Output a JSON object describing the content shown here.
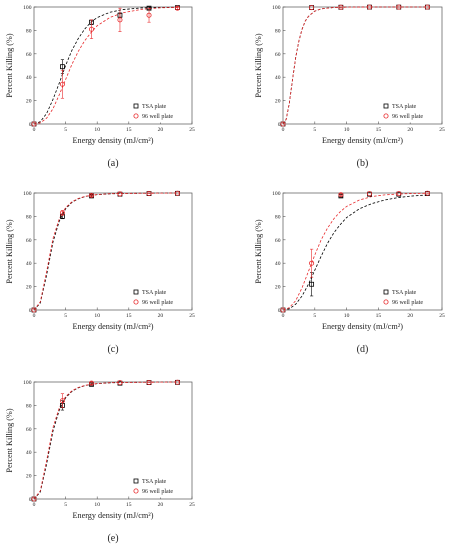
{
  "chart_data": [
    {
      "type": "scatter",
      "panel_label": "(a)",
      "xlabel": "Energy density (mJ/cm²)",
      "ylabel": "Percent Killing (%)",
      "xlim": [
        0,
        25
      ],
      "ylim": [
        0,
        100
      ],
      "xticks": [
        0,
        5,
        10,
        15,
        20,
        25
      ],
      "yticks": [
        0,
        20,
        40,
        60,
        80,
        100
      ],
      "grid": false,
      "legend_position": "bottom-right",
      "series": [
        {
          "name": "TSA plate",
          "marker": "square",
          "color": "#000000",
          "x": [
            0,
            4.5,
            9.1,
            13.6,
            18.2,
            22.7
          ],
          "y": [
            0,
            49,
            87,
            93,
            99,
            99.5
          ],
          "err": [
            0,
            6,
            2,
            2,
            1,
            0
          ]
        },
        {
          "name": "96 well plate",
          "marker": "circle",
          "color": "#e8292b",
          "x": [
            0,
            4.5,
            9.1,
            13.6,
            18.2,
            22.7
          ],
          "y": [
            0,
            34,
            81,
            89,
            93,
            99
          ],
          "err": [
            0,
            12,
            8,
            10,
            6,
            1
          ]
        }
      ],
      "fits": [
        {
          "series": "TSA plate",
          "style": "dashed",
          "color": "#000000",
          "x": [
            0,
            1,
            2,
            3,
            4,
            5,
            6,
            7,
            8,
            9,
            10,
            12,
            14,
            17,
            20,
            23
          ],
          "y": [
            0,
            2,
            9,
            21,
            35,
            50,
            63,
            73,
            81,
            87,
            91,
            95.5,
            97.8,
            99.2,
            99.6,
            99.8
          ]
        },
        {
          "series": "96 well plate",
          "style": "dashed",
          "color": "#e8292b",
          "x": [
            0,
            1,
            2,
            3,
            4,
            5,
            6,
            7,
            8,
            9,
            10,
            12,
            14,
            17,
            20,
            23
          ],
          "y": [
            0,
            1,
            5,
            13,
            25,
            38,
            51,
            62,
            71,
            78,
            84,
            91,
            95,
            98,
            99.3,
            99.7
          ]
        }
      ]
    },
    {
      "type": "scatter",
      "panel_label": "(b)",
      "xlabel": "Energy density (mJ/cm²)",
      "ylabel": "Percent Killing (%)",
      "xlim": [
        0,
        25
      ],
      "ylim": [
        0,
        100
      ],
      "xticks": [
        0,
        5,
        10,
        15,
        20,
        25
      ],
      "yticks": [
        0,
        20,
        40,
        60,
        80,
        100
      ],
      "grid": false,
      "legend_position": "bottom-right",
      "series": [
        {
          "name": "TSA plate",
          "marker": "square",
          "color": "#000000",
          "x": [
            0,
            4.5,
            9.1,
            13.6,
            18.2,
            22.7
          ],
          "y": [
            0,
            99.5,
            99.8,
            99.9,
            99.9,
            99.9
          ],
          "err": [
            0,
            0,
            0,
            0,
            0,
            0
          ]
        },
        {
          "name": "96 well plate",
          "marker": "circle",
          "color": "#e8292b",
          "x": [
            0,
            4.5,
            9.1,
            13.6,
            18.2,
            22.7
          ],
          "y": [
            0,
            99.5,
            99.8,
            99.9,
            99.9,
            99.9
          ],
          "err": [
            0,
            0,
            0,
            0,
            0,
            0
          ]
        }
      ],
      "fits": [
        {
          "series": "TSA plate",
          "style": "dashed",
          "color": "#000000",
          "x": [
            0,
            0.5,
            1,
            1.5,
            2,
            2.5,
            3,
            3.5,
            4,
            5,
            6,
            8,
            10,
            15,
            23
          ],
          "y": [
            0,
            4,
            18,
            38,
            57,
            71,
            81,
            88,
            92,
            96.5,
            98.4,
            99.6,
            99.9,
            100,
            100
          ]
        },
        {
          "series": "96 well plate",
          "style": "dashed",
          "color": "#e8292b",
          "x": [
            0,
            0.5,
            1,
            1.5,
            2,
            2.5,
            3,
            3.5,
            4,
            5,
            6,
            8,
            10,
            15,
            23
          ],
          "y": [
            0,
            4,
            18,
            38,
            57,
            71,
            81,
            88,
            92,
            96.5,
            98.4,
            99.6,
            99.9,
            100,
            100
          ]
        }
      ]
    },
    {
      "type": "scatter",
      "panel_label": "(c)",
      "xlabel": "Energy density (mJ/cm²)",
      "ylabel": "Percent Killing (%)",
      "xlim": [
        0,
        25
      ],
      "ylim": [
        0,
        100
      ],
      "xticks": [
        0,
        5,
        10,
        15,
        20,
        25
      ],
      "yticks": [
        0,
        20,
        40,
        60,
        80,
        100
      ],
      "grid": false,
      "legend_position": "bottom-right",
      "series": [
        {
          "name": "TSA plate",
          "marker": "square",
          "color": "#000000",
          "x": [
            0,
            4.5,
            9.1,
            13.6,
            18.2,
            22.7
          ],
          "y": [
            0,
            80,
            97.5,
            99,
            99.5,
            99.7
          ],
          "err": [
            0,
            2,
            1,
            0,
            0,
            0
          ]
        },
        {
          "name": "96 well plate",
          "marker": "circle",
          "color": "#e8292b",
          "x": [
            0,
            4.5,
            9.1,
            13.6,
            18.2,
            22.7
          ],
          "y": [
            0,
            83,
            98,
            99.2,
            99.6,
            99.8
          ],
          "err": [
            0,
            2,
            1,
            0,
            0,
            0
          ]
        }
      ],
      "fits": [
        {
          "series": "TSA plate",
          "style": "dashed",
          "color": "#000000",
          "x": [
            0,
            1,
            2,
            3,
            4,
            5,
            6,
            7,
            8,
            9,
            10,
            12,
            15,
            20,
            23
          ],
          "y": [
            0,
            6,
            30,
            58,
            76,
            86.5,
            92,
            95,
            96.8,
            97.9,
            98.6,
            99.3,
            99.7,
            99.9,
            100
          ]
        },
        {
          "series": "96 well plate",
          "style": "dashed",
          "color": "#e8292b",
          "x": [
            0,
            1,
            2,
            3,
            4,
            5,
            6,
            7,
            8,
            9,
            10,
            12,
            15,
            20,
            23
          ],
          "y": [
            0,
            7,
            33,
            61,
            78,
            87.5,
            92.5,
            95.3,
            97,
            98,
            98.7,
            99.4,
            99.7,
            99.9,
            100
          ]
        }
      ]
    },
    {
      "type": "scatter",
      "panel_label": "(d)",
      "xlabel": "Energy density (mJ/cm²)",
      "ylabel": "Percent Killing (%)",
      "xlim": [
        0,
        25
      ],
      "ylim": [
        0,
        100
      ],
      "xticks": [
        0,
        5,
        10,
        15,
        20,
        25
      ],
      "yticks": [
        0,
        20,
        40,
        60,
        80,
        100
      ],
      "grid": false,
      "legend_position": "bottom-right",
      "series": [
        {
          "name": "TSA plate",
          "marker": "square",
          "color": "#000000",
          "x": [
            0,
            4.5,
            9.1,
            13.6,
            18.2,
            22.7
          ],
          "y": [
            0,
            22,
            97.5,
            99,
            99,
            99.5
          ],
          "err": [
            0,
            10,
            1,
            0,
            0,
            0
          ]
        },
        {
          "name": "96 well plate",
          "marker": "circle",
          "color": "#e8292b",
          "x": [
            0,
            4.5,
            9.1,
            13.6,
            18.2,
            22.7
          ],
          "y": [
            0,
            40,
            98.5,
            99.5,
            99.5,
            99.8
          ],
          "err": [
            0,
            12,
            1,
            0,
            0,
            0
          ]
        }
      ],
      "fits": [
        {
          "series": "TSA plate",
          "style": "dashed",
          "color": "#000000",
          "x": [
            0,
            1,
            2,
            3,
            4,
            5,
            6,
            7,
            8,
            9,
            10,
            12,
            14,
            16,
            18,
            20,
            23
          ],
          "y": [
            0,
            1,
            5,
            12,
            22,
            34,
            46,
            57,
            66,
            73,
            79,
            86.5,
            91,
            94,
            96,
            97.3,
            98.5
          ]
        },
        {
          "series": "96 well plate",
          "style": "dashed",
          "color": "#e8292b",
          "x": [
            0,
            1,
            2,
            3,
            4,
            5,
            6,
            7,
            8,
            9,
            10,
            12,
            14,
            16,
            18,
            20,
            23
          ],
          "y": [
            0,
            2,
            8,
            19,
            33,
            47,
            60,
            70,
            78,
            84,
            88.5,
            94,
            97,
            98.4,
            99.1,
            99.5,
            99.8
          ]
        }
      ]
    },
    {
      "type": "scatter",
      "panel_label": "(e)",
      "xlabel": "Energy density (mJ/cm²)",
      "ylabel": "Percent Killing (%)",
      "xlim": [
        0,
        25
      ],
      "ylim": [
        0,
        100
      ],
      "xticks": [
        0,
        5,
        10,
        15,
        20,
        25
      ],
      "yticks": [
        0,
        20,
        40,
        60,
        80,
        100
      ],
      "grid": false,
      "legend_position": "bottom-right",
      "series": [
        {
          "name": "TSA plate",
          "marker": "square",
          "color": "#000000",
          "x": [
            0,
            4.5,
            9.1,
            13.6,
            18.2,
            22.7
          ],
          "y": [
            0,
            80,
            98,
            99,
            99.5,
            99.7
          ],
          "err": [
            0,
            4,
            1,
            0,
            0,
            0
          ]
        },
        {
          "name": "96 well plate",
          "marker": "circle",
          "color": "#e8292b",
          "x": [
            0,
            4.5,
            9.1,
            13.6,
            18.2,
            22.7
          ],
          "y": [
            0,
            84,
            99,
            99.5,
            99.6,
            99.8
          ],
          "err": [
            0,
            6,
            1,
            0,
            0,
            0
          ]
        }
      ],
      "fits": [
        {
          "series": "TSA plate",
          "style": "dashed",
          "color": "#000000",
          "x": [
            0,
            1,
            2,
            3,
            4,
            5,
            6,
            7,
            8,
            9,
            10,
            12,
            15,
            20,
            23
          ],
          "y": [
            0,
            6,
            30,
            58,
            76,
            86.5,
            92,
            95,
            96.8,
            97.9,
            98.6,
            99.3,
            99.7,
            99.9,
            100
          ]
        },
        {
          "series": "96 well plate",
          "style": "dashed",
          "color": "#e8292b",
          "x": [
            0,
            1,
            2,
            3,
            4,
            5,
            6,
            7,
            8,
            9,
            10,
            12,
            15,
            20,
            23
          ],
          "y": [
            0,
            7,
            33,
            61,
            78,
            87.5,
            92.5,
            95.3,
            97,
            98,
            98.7,
            99.4,
            99.7,
            99.9,
            100
          ]
        }
      ]
    }
  ]
}
